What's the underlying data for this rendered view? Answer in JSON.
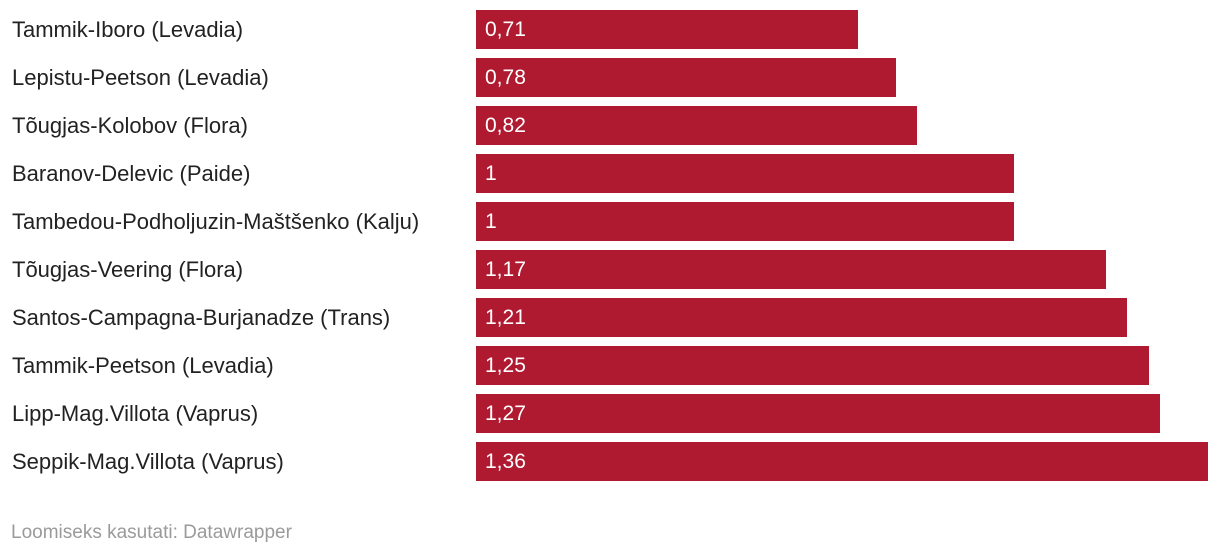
{
  "chart_data": {
    "type": "bar",
    "orientation": "horizontal",
    "categories": [
      "Tammik-Iboro (Levadia)",
      "Lepistu-Peetson (Levadia)",
      "Tõugjas-Kolobov (Flora)",
      "Baranov-Delevic (Paide)",
      "Tambedou-Podholjuzin-Maštšenko (Kalju)",
      "Tõugjas-Veering (Flora)",
      "Santos-Campagna-Burjanadze (Trans)",
      "Tammik-Peetson (Levadia)",
      "Lipp-Mag.Villota (Vaprus)",
      "Seppik-Mag.Villota (Vaprus)"
    ],
    "values": [
      0.71,
      0.78,
      0.82,
      1,
      1,
      1.17,
      1.21,
      1.25,
      1.27,
      1.36
    ],
    "value_labels": [
      "0,71",
      "0,78",
      "0,82",
      "1",
      "1",
      "1,17",
      "1,21",
      "1,25",
      "1,27",
      "1,36"
    ],
    "xlim": [
      0,
      1.36
    ],
    "grid": false,
    "bar_color": "#b01a31"
  },
  "footer": {
    "credit": "Loomiseks kasutati: Datawrapper"
  }
}
